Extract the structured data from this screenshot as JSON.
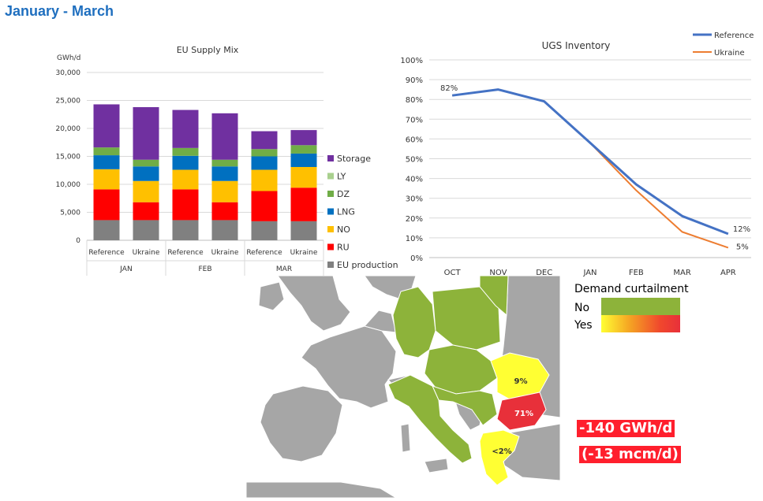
{
  "page": {
    "title": "January - March"
  },
  "chart_data": [
    {
      "type": "bar",
      "stacked": true,
      "title": "EU Supply Mix",
      "ylabel": "GWh/d",
      "ylim": [
        0,
        30000
      ],
      "yticks": [
        "0",
        "5,000",
        "10,000",
        "15,000",
        "20,000",
        "25,000",
        "30,000"
      ],
      "grid": true,
      "legend_position": "right",
      "categories": [
        "Reference",
        "Ukraine",
        "Reference",
        "Ukraine",
        "Reference",
        "Ukraine"
      ],
      "groups": [
        "JAN",
        "FEB",
        "MAR"
      ],
      "series": [
        {
          "name": "EU production",
          "color": "#808080",
          "values": [
            3600,
            3600,
            3600,
            3600,
            3400,
            3400
          ]
        },
        {
          "name": "RU",
          "color": "#ff0000",
          "values": [
            5500,
            3200,
            5500,
            3200,
            5400,
            6000
          ]
        },
        {
          "name": "NO",
          "color": "#ffc000",
          "values": [
            3600,
            3800,
            3500,
            3800,
            3800,
            3700
          ]
        },
        {
          "name": "LNG",
          "color": "#0070c0",
          "values": [
            2500,
            2600,
            2500,
            2600,
            2400,
            2400
          ]
        },
        {
          "name": "DZ",
          "color": "#70ad47",
          "values": [
            1400,
            1200,
            1400,
            1200,
            1300,
            1500
          ]
        },
        {
          "name": "LY",
          "color": "#a9d08e",
          "values": [
            0,
            0,
            0,
            0,
            0,
            0
          ]
        },
        {
          "name": "Storage",
          "color": "#7030a0",
          "values": [
            7700,
            9400,
            6800,
            8300,
            3200,
            2700
          ]
        }
      ]
    },
    {
      "type": "line",
      "title": "UGS Inventory",
      "ylim": [
        0,
        100
      ],
      "yticks": [
        "0%",
        "10%",
        "20%",
        "30%",
        "40%",
        "50%",
        "60%",
        "70%",
        "80%",
        "90%",
        "100%"
      ],
      "x": [
        "OCT",
        "NOV",
        "DEC",
        "JAN",
        "FEB",
        "MAR",
        "APR"
      ],
      "grid": true,
      "legend_position": "top-right",
      "series": [
        {
          "name": "Reference",
          "color": "#4472c4",
          "values": [
            82,
            85,
            79,
            58,
            37,
            21,
            12
          ]
        },
        {
          "name": "Ukraine",
          "color": "#ed7d31",
          "values": [
            82,
            85,
            79,
            58,
            34,
            13,
            5
          ]
        }
      ],
      "annotations": [
        "82%",
        "12%",
        "5%"
      ]
    }
  ],
  "map": {
    "region_labels": [
      "9%",
      "71%",
      "<2%"
    ],
    "legend": {
      "title": "Demand curtailment",
      "no_label": "No",
      "yes_label": "Yes",
      "no_color": "#8db33a",
      "yes_colors": [
        "#ffff33",
        "#e8303a"
      ]
    },
    "colors": {
      "not_curtailed": "#8db33a",
      "land_other": "#a6a6a6",
      "border": "#ffffff",
      "severe": "#e8303a",
      "moderate": "#ffff33"
    }
  },
  "callout": {
    "line1": "-140 GWh/d",
    "line2": "(-13 mcm/d)"
  }
}
